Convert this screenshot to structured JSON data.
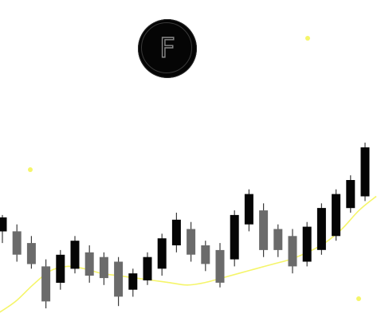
{
  "logo": {
    "letter": "F",
    "icon": "f-coin-logo-icon",
    "fill_color": "#050505",
    "stroke_color": "#8a8a8a"
  },
  "colors": {
    "bullish": "#050505",
    "bearish": "#6b6b6b",
    "wick": "#3c3c3c",
    "moving_average": "#f5f56a",
    "dots": "#f5f56a",
    "background": "#ffffff"
  },
  "chart_data": {
    "type": "candlestick",
    "grid": false,
    "legend": "none",
    "ylim": [
      0,
      100
    ],
    "candles": [
      {
        "open": 35,
        "high": 42,
        "low": 30,
        "close": 41
      },
      {
        "open": 35,
        "high": 38,
        "low": 22,
        "close": 25
      },
      {
        "open": 30,
        "high": 33,
        "low": 19,
        "close": 21
      },
      {
        "open": 20,
        "high": 23,
        "low": 2,
        "close": 5
      },
      {
        "open": 13,
        "high": 27,
        "low": 10,
        "close": 25
      },
      {
        "open": 19,
        "high": 33,
        "low": 17,
        "close": 31
      },
      {
        "open": 26,
        "high": 29,
        "low": 13,
        "close": 16
      },
      {
        "open": 24,
        "high": 26,
        "low": 12,
        "close": 15
      },
      {
        "open": 22,
        "high": 24,
        "low": 3,
        "close": 7
      },
      {
        "open": 10,
        "high": 19,
        "low": 7,
        "close": 17
      },
      {
        "open": 14,
        "high": 26,
        "low": 12,
        "close": 24
      },
      {
        "open": 19,
        "high": 34,
        "low": 16,
        "close": 32
      },
      {
        "open": 29,
        "high": 43,
        "low": 26,
        "close": 40
      },
      {
        "open": 36,
        "high": 39,
        "low": 22,
        "close": 25
      },
      {
        "open": 29,
        "high": 31,
        "low": 18,
        "close": 21
      },
      {
        "open": 27,
        "high": 30,
        "low": 11,
        "close": 13
      },
      {
        "open": 23,
        "high": 44,
        "low": 20,
        "close": 42
      },
      {
        "open": 38,
        "high": 53,
        "low": 35,
        "close": 51
      },
      {
        "open": 44,
        "high": 47,
        "low": 24,
        "close": 27
      },
      {
        "open": 36,
        "high": 38,
        "low": 24,
        "close": 27
      },
      {
        "open": 33,
        "high": 36,
        "low": 17,
        "close": 20
      },
      {
        "open": 22,
        "high": 39,
        "low": 20,
        "close": 37
      },
      {
        "open": 27,
        "high": 47,
        "low": 25,
        "close": 45
      },
      {
        "open": 33,
        "high": 53,
        "low": 31,
        "close": 51
      },
      {
        "open": 45,
        "high": 59,
        "low": 43,
        "close": 57
      },
      {
        "open": 50,
        "high": 73,
        "low": 48,
        "close": 71
      }
    ],
    "moving_average": [
      0,
      5,
      12,
      18,
      20,
      19,
      17,
      16,
      15,
      14,
      13,
      12,
      13,
      15,
      17,
      19,
      21,
      23,
      26,
      30,
      36,
      44,
      50
    ]
  }
}
